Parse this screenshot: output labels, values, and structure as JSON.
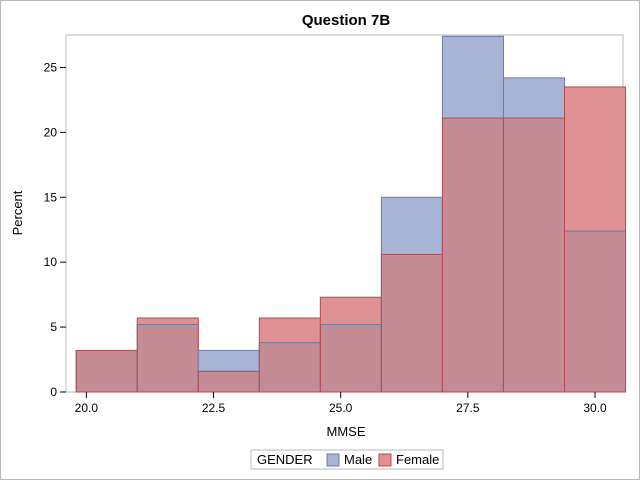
{
  "chart_data": {
    "type": "bar",
    "title": "Question 7B",
    "xlabel": "MMSE",
    "ylabel": "Percent",
    "xlim": [
      19.6,
      30.55
    ],
    "ylim": [
      0,
      27.5
    ],
    "xticks": [
      "20.0",
      "22.5",
      "25.0",
      "27.5",
      "30.0"
    ],
    "yticks": [
      "0",
      "5",
      "10",
      "15",
      "20",
      "25"
    ],
    "bin_edges": [
      19.8,
      21.0,
      22.2,
      23.4,
      24.6,
      25.8,
      27.0,
      28.2,
      29.4,
      30.6
    ],
    "grid": false,
    "legend": {
      "title": "GENDER",
      "position": "bottom-center"
    },
    "series": [
      {
        "name": "Male",
        "color": "#a8b4d6",
        "edge": "#6b7aa8",
        "values": [
          3.2,
          5.2,
          3.2,
          3.8,
          5.2,
          15.0,
          27.4,
          24.2,
          12.4
        ]
      },
      {
        "name": "Female",
        "color": "#df9194",
        "edge": "#b84a4d",
        "values": [
          3.2,
          5.7,
          1.6,
          5.7,
          7.3,
          10.6,
          21.1,
          21.1,
          23.5
        ]
      }
    ],
    "overlap_color": "#c68c96"
  }
}
